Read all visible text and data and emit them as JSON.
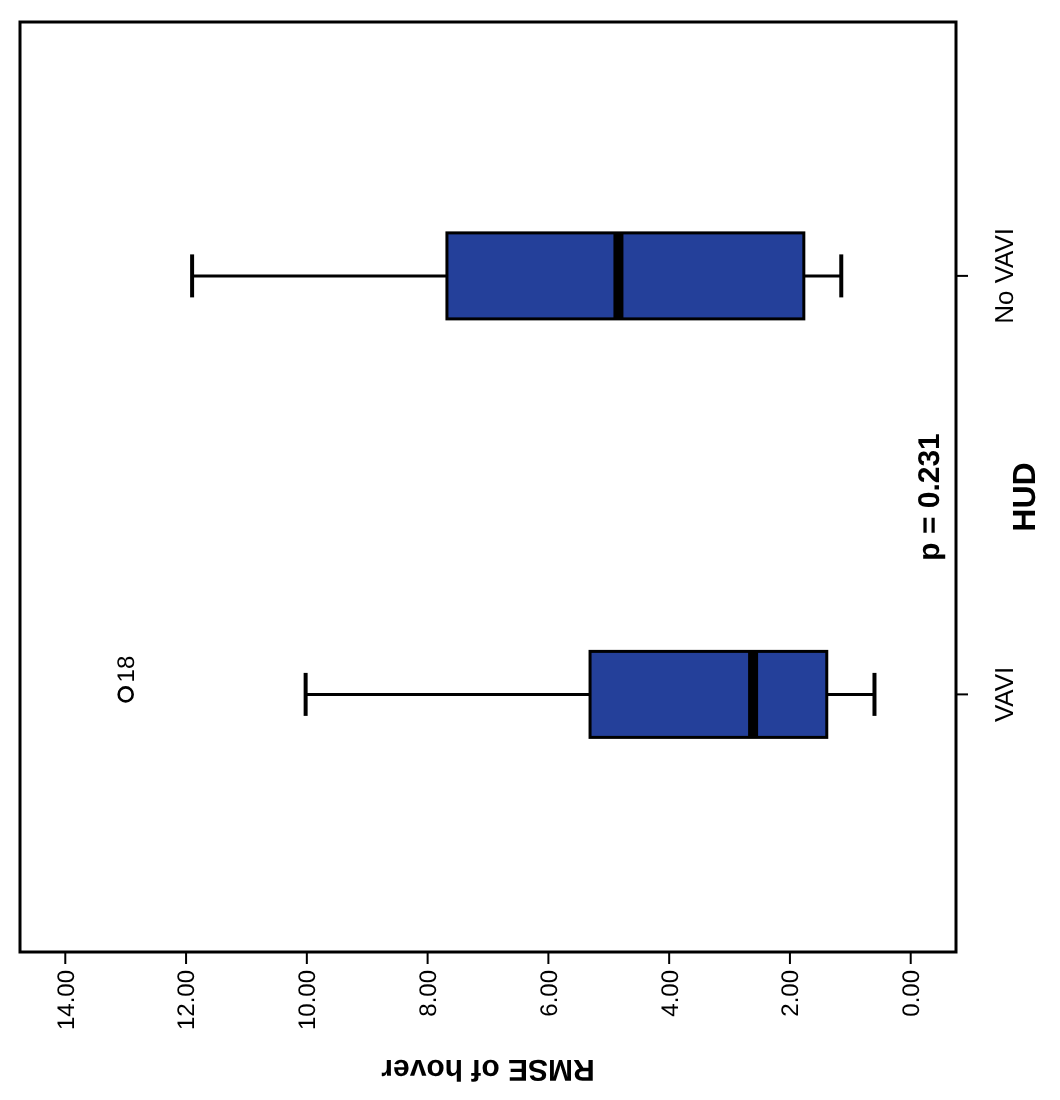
{
  "chart_data": {
    "type": "box",
    "orientation": "horizontal",
    "categories": [
      "No VAVI",
      "VAVI"
    ],
    "ylabel": "HUD",
    "xlabel": "RMSE of hover",
    "color": "#24409a",
    "boxes": [
      {
        "low": 1.15,
        "q1": 1.77,
        "median": 4.84,
        "q3": 7.68,
        "high": 11.9
      },
      {
        "low": 0.6,
        "q1": 1.39,
        "median": 2.61,
        "q3": 5.31,
        "high": 10.02,
        "outliers": [
          13.0
        ]
      }
    ],
    "xlim": [
      14.75,
      -0.75
    ],
    "xticks": [
      {
        "value": 14,
        "label": "14.00"
      },
      {
        "value": 12,
        "label": "12.00"
      },
      {
        "value": 10,
        "label": "10.00"
      },
      {
        "value": 8,
        "label": "8.00"
      },
      {
        "value": 6,
        "label": "6.00"
      },
      {
        "value": 4,
        "label": "4.00"
      },
      {
        "value": 2,
        "label": "2.00"
      },
      {
        "value": 0,
        "label": "0.00"
      }
    ],
    "annotations": [
      "p = 0.231",
      "18"
    ],
    "grid": false
  }
}
